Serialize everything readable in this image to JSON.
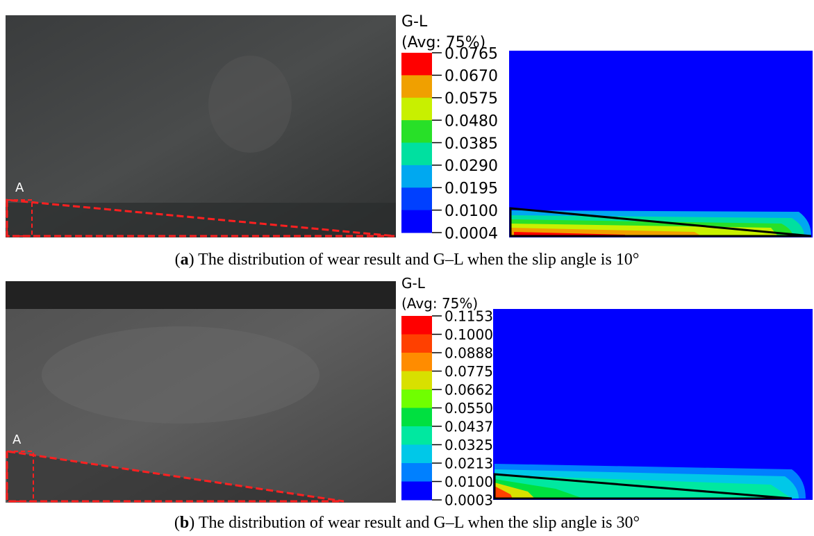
{
  "panels": [
    {
      "photo_label": "A",
      "legend": {
        "title": "G-L",
        "subtitle": "(Avg: 75%)",
        "values": [
          "0.0765",
          "0.0670",
          "0.0575",
          "0.0480",
          "0.0385",
          "0.0290",
          "0.0195",
          "0.0100",
          "0.0004"
        ]
      },
      "caption": {
        "open": "(",
        "label": "a",
        "text": ") The distribution of wear result and G–L when the slip angle is 10°"
      }
    },
    {
      "photo_label": "A",
      "legend": {
        "title": "G-L",
        "subtitle": "(Avg: 75%)",
        "values": [
          "0.1153",
          "0.1000",
          "0.0888",
          "0.0775",
          "0.0662",
          "0.0550",
          "0.0437",
          "0.0325",
          "0.0213",
          "0.0100",
          "0.0003"
        ]
      },
      "caption": {
        "open": "(",
        "label": "b",
        "text": ") The distribution of wear result and G–L when the slip angle is 30°"
      }
    }
  ]
}
